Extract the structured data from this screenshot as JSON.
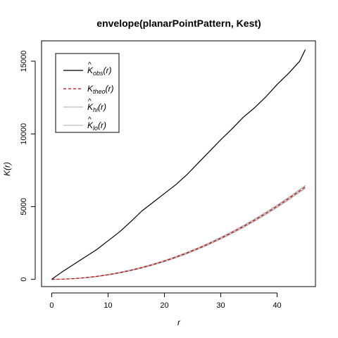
{
  "chart_data": {
    "type": "line",
    "title": "envelope(planarPointPattern, Kest)",
    "xlabel": "r",
    "ylabel": "K(r)",
    "xlim": [
      -1.8,
      46.8
    ],
    "ylim": [
      -500,
      16400
    ],
    "x_ticks": [
      {
        "value": 0,
        "label": "0"
      },
      {
        "value": 10,
        "label": "10"
      },
      {
        "value": 20,
        "label": "20"
      },
      {
        "value": 30,
        "label": "30"
      },
      {
        "value": 40,
        "label": "40"
      }
    ],
    "y_ticks": [
      {
        "value": 0,
        "label": "0"
      },
      {
        "value": 5000,
        "label": "5000"
      },
      {
        "value": 10000,
        "label": "10000"
      },
      {
        "value": 15000,
        "label": "15000"
      }
    ],
    "legend_position": "top-left",
    "legend": [
      {
        "hat": "^",
        "base": "K",
        "sub": "obs",
        "arg": "(r)",
        "color": "#000000",
        "dash": "",
        "width": 1.2
      },
      {
        "hat": "",
        "base": "K",
        "sub": "theo",
        "arg": "(r)",
        "color": "#cc0000",
        "dash": "4,3",
        "width": 1.2
      },
      {
        "hat": "^",
        "base": "K",
        "sub": "hi",
        "arg": "(r)",
        "color": "#a8a8a8",
        "dash": "",
        "width": 1.0
      },
      {
        "hat": "^",
        "base": "K",
        "sub": "lo",
        "arg": "(r)",
        "color": "#a8a8a8",
        "dash": "",
        "width": 1.0
      }
    ],
    "series": [
      {
        "name": "obs",
        "x": [
          0,
          2,
          4,
          6,
          8,
          10,
          12,
          14,
          16,
          18,
          20,
          22,
          24,
          26,
          28,
          30,
          32,
          34,
          36,
          38,
          40,
          42,
          44,
          45
        ],
        "y": [
          0,
          550,
          1050,
          1550,
          2050,
          2650,
          3250,
          3950,
          4700,
          5300,
          5900,
          6500,
          7200,
          8000,
          8800,
          9600,
          10350,
          11150,
          11800,
          12550,
          13400,
          14150,
          15000,
          15800
        ]
      },
      {
        "name": "theo",
        "x": [
          0,
          2,
          4,
          6,
          8,
          10,
          12,
          14,
          16,
          18,
          20,
          22,
          24,
          26,
          28,
          30,
          32,
          34,
          36,
          38,
          40,
          42,
          44,
          45
        ],
        "y": [
          0,
          13,
          50,
          113,
          201,
          314,
          452,
          616,
          804,
          1018,
          1257,
          1521,
          1810,
          2124,
          2463,
          2827,
          3217,
          3632,
          4072,
          4536,
          5027,
          5542,
          6082,
          6362
        ]
      },
      {
        "name": "hi",
        "x": [
          0,
          2,
          4,
          6,
          8,
          10,
          12,
          14,
          16,
          18,
          20,
          22,
          24,
          26,
          28,
          30,
          32,
          34,
          36,
          38,
          40,
          42,
          44,
          45
        ],
        "y": [
          0,
          18,
          58,
          125,
          218,
          335,
          478,
          646,
          838,
          1056,
          1300,
          1568,
          1862,
          2180,
          2522,
          2890,
          3285,
          3705,
          4148,
          4616,
          5110,
          5630,
          6176,
          6460
        ]
      },
      {
        "name": "lo",
        "x": [
          0,
          2,
          4,
          6,
          8,
          10,
          12,
          14,
          16,
          18,
          20,
          22,
          24,
          26,
          28,
          30,
          32,
          34,
          36,
          38,
          40,
          42,
          44,
          45
        ],
        "y": [
          0,
          8,
          42,
          101,
          184,
          293,
          426,
          586,
          770,
          980,
          1214,
          1474,
          1758,
          2068,
          2404,
          2764,
          3149,
          3559,
          3996,
          4456,
          4944,
          5454,
          5988,
          6264
        ]
      }
    ]
  }
}
